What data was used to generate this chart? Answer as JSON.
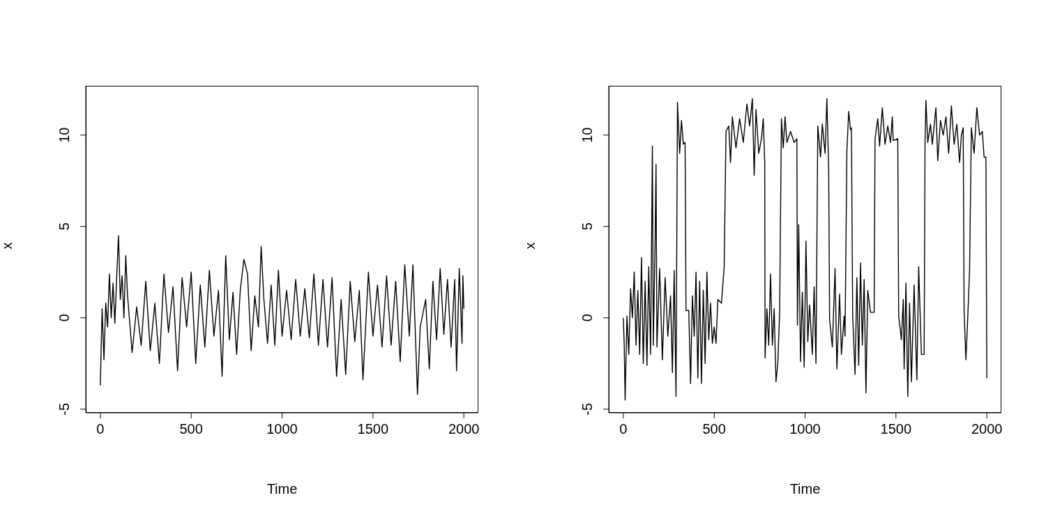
{
  "chart_data": [
    {
      "type": "line",
      "xlabel": "Time",
      "ylabel": "x",
      "xlim": [
        -80,
        2080
      ],
      "ylim": [
        -5.2,
        12.7
      ],
      "xticks": [
        0,
        500,
        1000,
        1500,
        2000
      ],
      "yticks": [
        -5,
        0,
        5,
        10
      ],
      "grid": false,
      "line_style": "solid",
      "x": [
        0,
        10,
        20,
        30,
        40,
        50,
        60,
        70,
        80,
        90,
        100,
        110,
        120,
        130,
        140,
        150,
        175,
        200,
        225,
        250,
        275,
        300,
        325,
        350,
        375,
        400,
        425,
        450,
        475,
        500,
        525,
        550,
        575,
        600,
        625,
        650,
        670,
        690,
        710,
        730,
        750,
        770,
        790,
        810,
        830,
        850,
        870,
        885,
        900,
        920,
        940,
        960,
        980,
        1000,
        1025,
        1050,
        1075,
        1100,
        1125,
        1150,
        1175,
        1200,
        1225,
        1250,
        1275,
        1300,
        1325,
        1350,
        1375,
        1400,
        1425,
        1445,
        1475,
        1500,
        1525,
        1550,
        1575,
        1600,
        1625,
        1650,
        1675,
        1700,
        1720,
        1745,
        1760,
        1790,
        1810,
        1830,
        1850,
        1870,
        1890,
        1910,
        1930,
        1950,
        1960,
        1975,
        1990,
        1995,
        2000
      ],
      "series": [
        {
          "color": "#000000",
          "values": [
            -3.7,
            0.5,
            -2.3,
            0.8,
            -0.5,
            2.4,
            0,
            1.9,
            -0.3,
            2.2,
            4.5,
            1.0,
            2.3,
            0,
            3.4,
            1.2,
            -1.9,
            0.6,
            -1.5,
            2.0,
            -1.8,
            0.8,
            -2.5,
            2.4,
            -0.8,
            1.7,
            -2.9,
            2.2,
            -0.5,
            2.5,
            -2.5,
            1.8,
            -1.6,
            2.6,
            -1.0,
            1.5,
            -3.2,
            3.4,
            -1.2,
            1.4,
            -2.0,
            1.5,
            3.2,
            2.4,
            -1.8,
            1.2,
            -0.5,
            3.9,
            1.0,
            -1.4,
            1.8,
            -1.5,
            2.6,
            -1.0,
            1.5,
            -1.2,
            2.1,
            -1.0,
            1.6,
            -1.1,
            2.4,
            -1.5,
            2.1,
            -1.6,
            2.2,
            -3.2,
            1.0,
            -3.1,
            2.0,
            -1.3,
            1.5,
            -3.4,
            2.5,
            -1.0,
            1.8,
            -1.6,
            2.3,
            -1.5,
            2.0,
            -2.4,
            2.9,
            -1.0,
            2.9,
            -4.2,
            -0.5,
            1.0,
            -2.8,
            2.0,
            -1.2,
            2.7,
            -0.9,
            2.1,
            -1.6,
            2.1,
            -2.9,
            2.7,
            -1.4,
            2.3,
            0.5
          ]
        }
      ]
    },
    {
      "type": "line",
      "xlabel": "Time",
      "ylabel": "x",
      "xlim": [
        -80,
        2080
      ],
      "ylim": [
        -5.2,
        12.7
      ],
      "xticks": [
        0,
        500,
        1000,
        1500,
        2000
      ],
      "yticks": [
        -5,
        0,
        5,
        10
      ],
      "grid": false,
      "line_style": "solid",
      "x": [
        0,
        5,
        10,
        20,
        30,
        40,
        50,
        60,
        70,
        80,
        90,
        100,
        110,
        120,
        130,
        140,
        150,
        160,
        165,
        175,
        180,
        185,
        200,
        215,
        230,
        245,
        260,
        270,
        280,
        290,
        298,
        310,
        320,
        330,
        340,
        345,
        360,
        370,
        380,
        390,
        400,
        410,
        420,
        430,
        440,
        450,
        460,
        470,
        480,
        490,
        500,
        510,
        520,
        540,
        555,
        565,
        580,
        590,
        600,
        620,
        640,
        660,
        680,
        695,
        710,
        720,
        730,
        745,
        760,
        770,
        778,
        780,
        790,
        800,
        810,
        820,
        830,
        840,
        850,
        860,
        870,
        880,
        890,
        900,
        920,
        940,
        955,
        958,
        965,
        975,
        985,
        995,
        1005,
        1015,
        1025,
        1040,
        1050,
        1060,
        1070,
        1085,
        1095,
        1110,
        1120,
        1130,
        1135,
        1150,
        1165,
        1175,
        1190,
        1200,
        1215,
        1220,
        1230,
        1240,
        1250,
        1255,
        1262,
        1275,
        1285,
        1295,
        1305,
        1315,
        1325,
        1335,
        1345,
        1360,
        1380,
        1385,
        1400,
        1410,
        1425,
        1440,
        1455,
        1470,
        1480,
        1485,
        1510,
        1515,
        1530,
        1540,
        1545,
        1555,
        1565,
        1575,
        1585,
        1600,
        1615,
        1625,
        1640,
        1655,
        1660,
        1665,
        1675,
        1690,
        1700,
        1720,
        1730,
        1745,
        1760,
        1775,
        1790,
        1805,
        1820,
        1835,
        1850,
        1860,
        1870,
        1875,
        1885,
        1895,
        1905,
        1915,
        1930,
        1945,
        1960,
        1975,
        1985,
        1995,
        2000
      ],
      "series": [
        {
          "color": "#000000",
          "values": [
            0,
            -1.5,
            -4.5,
            0.1,
            -2.0,
            1.6,
            0,
            2.5,
            -1.5,
            1.5,
            -2.0,
            3.3,
            -2.5,
            2.0,
            -2.6,
            2.8,
            -2.0,
            9.4,
            -1.5,
            4.2,
            8.4,
            -1.6,
            2.7,
            -2.3,
            2.2,
            -1.0,
            1.2,
            -3.0,
            2.6,
            -4.3,
            11.8,
            9.0,
            10.8,
            9.5,
            9.6,
            0.4,
            0.4,
            -3.6,
            1.2,
            -1.0,
            2.5,
            -3.3,
            2.0,
            -3.6,
            1.5,
            -2.5,
            2.5,
            -1.2,
            0.8,
            -1.4,
            -0.5,
            -1.4,
            1.0,
            0.8,
            2.8,
            10.2,
            10.5,
            8.5,
            11.0,
            9.3,
            10.9,
            9.6,
            11.7,
            10.5,
            12.0,
            7.8,
            11.4,
            9.0,
            9.8,
            10.9,
            8.5,
            -2.2,
            0.5,
            -1.5,
            2.4,
            -1.5,
            0.5,
            -3.5,
            -2.5,
            0.3,
            10.9,
            9.3,
            11.0,
            9.6,
            10.2,
            9.6,
            9.8,
            -0.4,
            5.1,
            -2.4,
            1.4,
            -2.7,
            4.2,
            -1.3,
            0.7,
            -2.0,
            1.7,
            -2.5,
            10.5,
            8.8,
            10.6,
            9.0,
            12.0,
            8.1,
            -0.1,
            -1.6,
            2.7,
            -2.8,
            1.3,
            -2.0,
            0.1,
            -1.0,
            9.1,
            11.3,
            10.3,
            10.4,
            0.1,
            -3.1,
            2.2,
            -2.6,
            3.0,
            -1.5,
            2.1,
            -4.1,
            1.5,
            0.3,
            0.3,
            9.8,
            10.9,
            9.4,
            11.5,
            9.5,
            10.5,
            9.6,
            11.0,
            9.7,
            9.8,
            0.1,
            -1.2,
            1.0,
            -2.8,
            1.9,
            -4.3,
            0.8,
            -3.5,
            1.8,
            -3.4,
            2.8,
            -2.0,
            -2.0,
            9.6,
            11.9,
            9.6,
            10.6,
            9.5,
            11.5,
            8.6,
            10.8,
            10.0,
            11.0,
            9.0,
            11.6,
            9.5,
            10.6,
            8.5,
            10.0,
            10.4,
            0.3,
            -2.3,
            0,
            2.6,
            10.4,
            9.0,
            11.5,
            10.0,
            10.2,
            8.8,
            8.8,
            -3.3
          ]
        }
      ]
    }
  ]
}
